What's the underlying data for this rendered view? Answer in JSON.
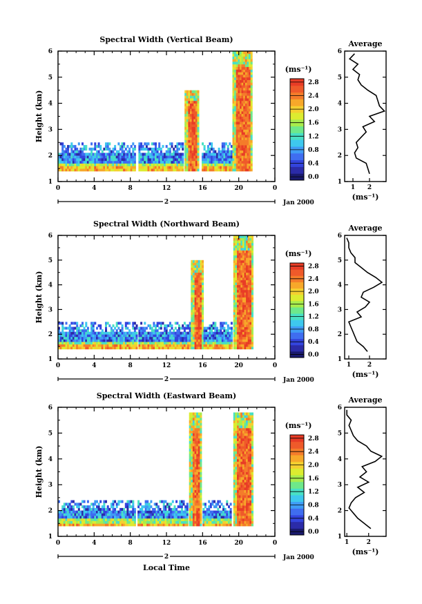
{
  "chart_data": [
    {
      "type": "heatmap",
      "title": "Spectral Width (Vertical Beam)",
      "ylabel": "Height (km)",
      "xticks": [
        "0",
        "4",
        "8",
        "12",
        "16",
        "20",
        "0"
      ],
      "yticks": [
        "1",
        "2",
        "3",
        "4",
        "5",
        "6"
      ],
      "xlim": [
        0,
        24
      ],
      "ylim": [
        1,
        6
      ],
      "date_label": "2",
      "date_suffix": "Jan 2000",
      "colorbar": {
        "unit": "(ms⁻¹)",
        "ticks": [
          "0.0",
          "0.4",
          "0.8",
          "1.2",
          "1.6",
          "2.0",
          "2.4",
          "2.8"
        ]
      },
      "average": {
        "title": "Average",
        "xlabel": "(ms⁻¹)",
        "xticks": [
          "1",
          "2"
        ],
        "yticks": [
          "1",
          "2",
          "3",
          "4",
          "5",
          "6"
        ],
        "xlim": [
          0.5,
          3.0
        ],
        "height": [
          1.3,
          1.5,
          1.7,
          1.9,
          2.1,
          2.3,
          2.5,
          2.7,
          2.9,
          3.1,
          3.3,
          3.5,
          3.7,
          3.9,
          4.1,
          4.3,
          4.5,
          4.7,
          4.9,
          5.1,
          5.3,
          5.5,
          5.7,
          5.9
        ],
        "width": [
          2.0,
          1.9,
          1.8,
          1.2,
          1.1,
          1.3,
          1.2,
          1.5,
          1.8,
          1.6,
          2.3,
          2.0,
          2.9,
          2.6,
          2.5,
          2.4,
          1.9,
          1.5,
          1.3,
          1.4,
          1.0,
          1.3,
          0.8,
          1.1
        ]
      },
      "regions": [
        {
          "t0": 0.0,
          "t1": 8.6,
          "h0": 1.4,
          "h1": 2.5
        },
        {
          "t0": 8.9,
          "t1": 13.8,
          "h0": 1.4,
          "h1": 2.5
        },
        {
          "t0": 14.0,
          "t1": 15.6,
          "h0": 1.4,
          "h1": 4.5
        },
        {
          "t0": 15.9,
          "t1": 19.2,
          "h0": 1.4,
          "h1": 2.5
        },
        {
          "t0": 19.3,
          "t1": 21.5,
          "h0": 1.4,
          "h1": 6.0
        }
      ]
    },
    {
      "type": "heatmap",
      "title": "Spectral Width (Northward Beam)",
      "ylabel": "Height (km)",
      "xticks": [
        "0",
        "4",
        "8",
        "12",
        "16",
        "20",
        "0"
      ],
      "yticks": [
        "1",
        "2",
        "3",
        "4",
        "5",
        "6"
      ],
      "xlim": [
        0,
        24
      ],
      "ylim": [
        1,
        6
      ],
      "date_label": "2",
      "date_suffix": "Jan 2000",
      "colorbar": {
        "unit": "(ms⁻¹)",
        "ticks": [
          "0.0",
          "0.4",
          "0.8",
          "1.2",
          "1.6",
          "2.0",
          "2.4",
          "2.8"
        ]
      },
      "average": {
        "title": "Average",
        "xlabel": "(ms⁻¹)",
        "xticks": [
          "1",
          "2"
        ],
        "yticks": [
          "1",
          "2",
          "3",
          "4",
          "5",
          "6"
        ],
        "xlim": [
          0.8,
          2.8
        ],
        "height": [
          1.3,
          1.5,
          1.7,
          1.9,
          2.1,
          2.3,
          2.5,
          2.7,
          2.9,
          3.1,
          3.3,
          3.5,
          3.7,
          3.9,
          4.1,
          4.3,
          4.5,
          4.7,
          4.9,
          5.1,
          5.3,
          5.5,
          5.7,
          5.9
        ],
        "width": [
          1.9,
          1.7,
          1.4,
          1.3,
          1.2,
          1.1,
          1.0,
          1.6,
          1.4,
          1.8,
          2.0,
          1.6,
          1.7,
          2.2,
          2.6,
          2.3,
          1.9,
          1.6,
          1.3,
          1.3,
          1.1,
          1.0,
          1.0,
          0.9
        ]
      },
      "regions": [
        {
          "t0": 0.0,
          "t1": 8.7,
          "h0": 1.4,
          "h1": 2.5
        },
        {
          "t0": 8.9,
          "t1": 14.6,
          "h0": 1.4,
          "h1": 2.5
        },
        {
          "t0": 14.7,
          "t1": 16.0,
          "h0": 1.4,
          "h1": 5.0
        },
        {
          "t0": 16.1,
          "t1": 19.2,
          "h0": 1.4,
          "h1": 2.5
        },
        {
          "t0": 19.4,
          "t1": 21.5,
          "h0": 1.4,
          "h1": 6.0
        }
      ]
    },
    {
      "type": "heatmap",
      "title": "Spectral Width (Eastward Beam)",
      "ylabel": "Height (km)",
      "xlabel": "Local Time",
      "xticks": [
        "0",
        "4",
        "8",
        "12",
        "16",
        "20",
        "0"
      ],
      "yticks": [
        "1",
        "2",
        "3",
        "4",
        "5",
        "6"
      ],
      "xlim": [
        0,
        24
      ],
      "ylim": [
        1,
        6
      ],
      "date_label": "2",
      "date_suffix": "Jan 2000",
      "colorbar": {
        "unit": "(ms⁻¹)",
        "ticks": [
          "0.0",
          "0.4",
          "0.8",
          "1.2",
          "1.6",
          "2.0",
          "2.4",
          "2.8"
        ]
      },
      "average": {
        "title": "Average",
        "xlabel": "(ms⁻¹)",
        "xticks": [
          "1",
          "2"
        ],
        "yticks": [
          "1",
          "2",
          "3",
          "4",
          "5",
          "6"
        ],
        "xlim": [
          0.9,
          2.8
        ],
        "height": [
          1.3,
          1.5,
          1.7,
          1.9,
          2.1,
          2.3,
          2.5,
          2.7,
          2.9,
          3.1,
          3.3,
          3.5,
          3.7,
          3.9,
          4.1,
          4.3,
          4.5,
          4.7,
          4.9,
          5.1,
          5.3,
          5.5,
          5.7,
          5.9
        ],
        "width": [
          2.1,
          1.8,
          1.5,
          1.3,
          1.1,
          1.2,
          1.4,
          1.8,
          1.5,
          2.0,
          1.6,
          1.9,
          1.7,
          2.3,
          2.6,
          2.1,
          1.9,
          1.5,
          1.3,
          1.2,
          1.1,
          1.2,
          1.0,
          1.0
        ]
      },
      "regions": [
        {
          "t0": 0.0,
          "t1": 8.6,
          "h0": 1.4,
          "h1": 2.4
        },
        {
          "t0": 8.8,
          "t1": 14.3,
          "h0": 1.4,
          "h1": 2.4
        },
        {
          "t0": 14.5,
          "t1": 15.9,
          "h0": 1.4,
          "h1": 5.8
        },
        {
          "t0": 16.0,
          "t1": 19.2,
          "h0": 1.4,
          "h1": 2.4
        },
        {
          "t0": 19.4,
          "t1": 21.5,
          "h0": 1.4,
          "h1": 5.8
        }
      ]
    }
  ]
}
